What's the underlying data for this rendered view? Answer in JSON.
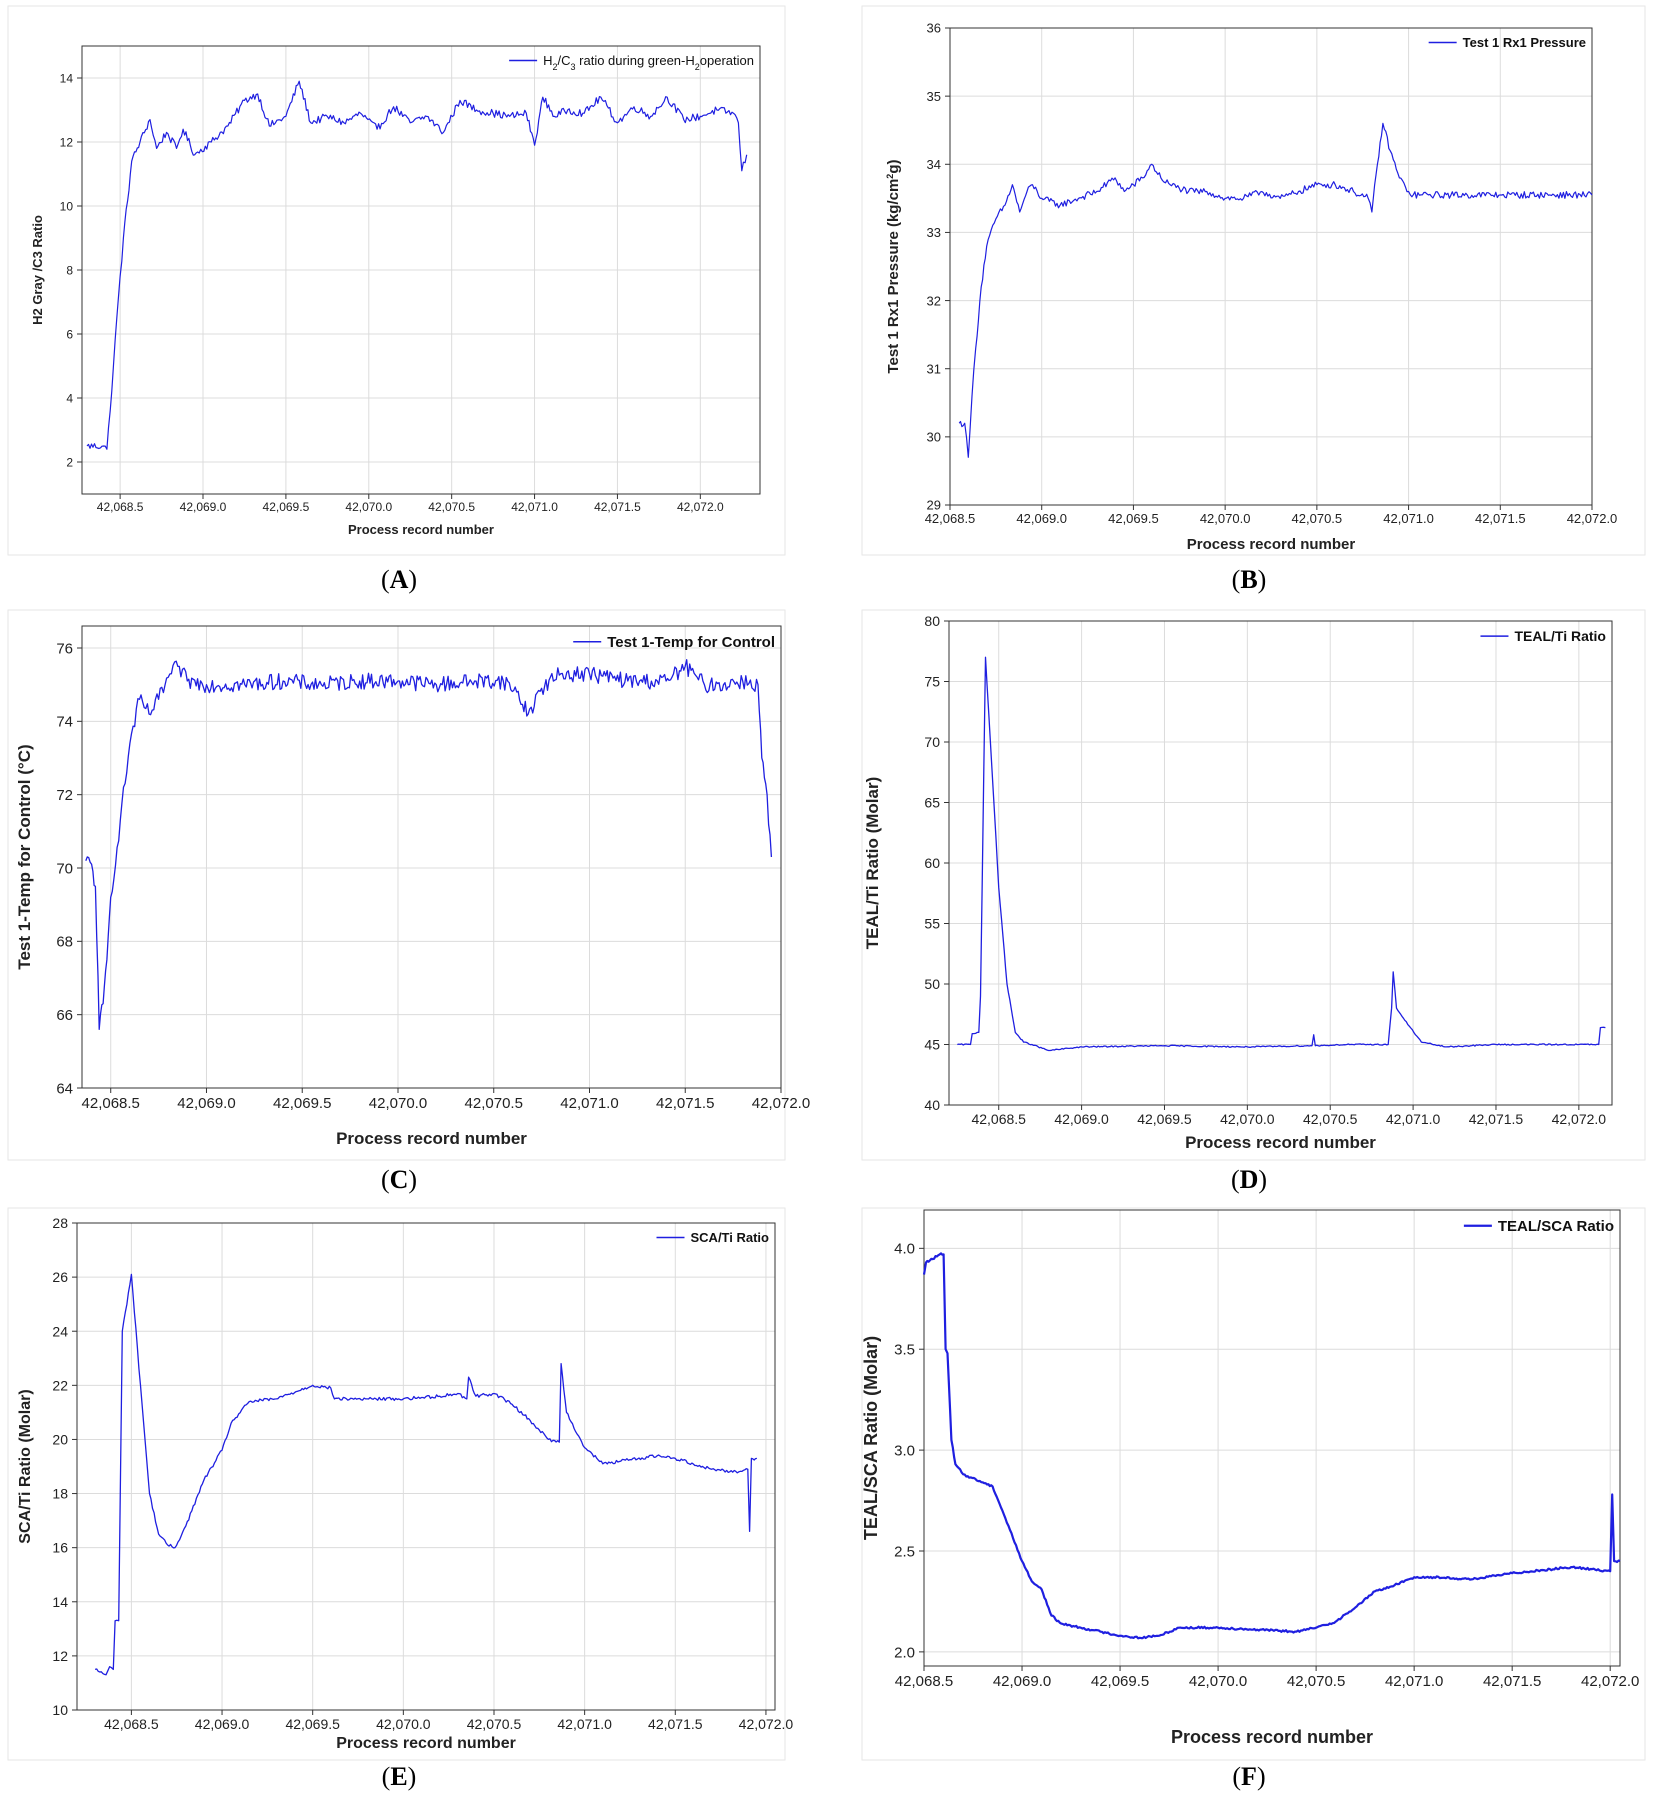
{
  "colors": {
    "line": "#1f1fe0",
    "grid": "#dcdcdc",
    "axis": "#333333",
    "frame": "#e6e6e6"
  },
  "panel_letters": [
    "A",
    "B",
    "C",
    "D",
    "E",
    "F"
  ],
  "chart_data": [
    {
      "panel": "A",
      "type": "line",
      "xlabel": "Process record number",
      "ylabel": "H2 Gray /C3 Ratio",
      "legend_html": "H<tspan baseline-shift=\"sub\" font-size=\"9\">2</tspan>/C<tspan baseline-shift=\"sub\" font-size=\"9\">3</tspan> ratio during green-H<tspan baseline-shift=\"sub\" font-size=\"9\">2</tspan>operation",
      "legend_text": "H2/C3 ratio during green-H2operation",
      "legend_position": "top-right",
      "grid": true,
      "xlim": [
        42068.27,
        42072.36
      ],
      "ylim": [
        1.0,
        15.0
      ],
      "xticks": [
        42068.5,
        42069.0,
        42069.5,
        42070.0,
        42070.5,
        42071.0,
        42071.5,
        42072.0
      ],
      "xtick_labels": [
        "42,068.5",
        "42,069.0",
        "42,069.5",
        "42,070.0",
        "42,070.5",
        "42,071.0",
        "42,071.5",
        "42,072.0"
      ],
      "yticks": [
        2,
        4,
        6,
        8,
        10,
        12,
        14
      ],
      "ytick_labels": [
        "2",
        "4",
        "6",
        "8",
        "10",
        "12",
        "14"
      ],
      "noise": 0.12,
      "series": [
        {
          "x": [
            42068.3,
            42068.4,
            42068.42,
            42068.44,
            42068.48,
            42068.52,
            42068.57,
            42068.62,
            42068.68,
            42068.72,
            42068.78,
            42068.84,
            42068.88,
            42068.95,
            42069.05,
            42069.15,
            42069.25,
            42069.33,
            42069.4,
            42069.5,
            42069.58,
            42069.65,
            42069.75,
            42069.85,
            42069.95,
            42070.05,
            42070.15,
            42070.25,
            42070.35,
            42070.45,
            42070.55,
            42070.65,
            42070.75,
            42070.85,
            42070.95,
            42071.0,
            42071.05,
            42071.12,
            42071.2,
            42071.3,
            42071.4,
            42071.5,
            42071.6,
            42071.7,
            42071.8,
            42071.9,
            42072.0,
            42072.1,
            42072.2,
            42072.23,
            42072.25,
            42072.28
          ],
          "y": [
            2.5,
            2.5,
            2.4,
            3.6,
            6.5,
            9.0,
            11.4,
            12.0,
            12.7,
            11.8,
            12.3,
            11.8,
            12.4,
            11.6,
            12.0,
            12.5,
            13.3,
            13.5,
            12.5,
            12.8,
            13.9,
            12.6,
            12.8,
            12.6,
            12.9,
            12.4,
            13.1,
            12.6,
            12.8,
            12.3,
            13.3,
            13.0,
            12.9,
            12.8,
            12.9,
            11.9,
            13.4,
            12.8,
            13.0,
            12.9,
            13.4,
            12.6,
            13.1,
            12.8,
            13.4,
            12.7,
            12.8,
            13.0,
            12.9,
            12.6,
            11.1,
            11.6
          ]
        }
      ]
    },
    {
      "panel": "B",
      "type": "line",
      "xlabel": "Process record number",
      "ylabel_html": "Test 1 Rx1 Pressure (kg/cm<tspan baseline-shift=\"super\" font-size=\"9\">2</tspan>g)",
      "ylabel": "Test 1 Rx1 Pressure (kg/cm2g)",
      "legend_text": "Test 1 Rx1 Pressure",
      "legend_position": "top-right",
      "grid": true,
      "xlim": [
        42068.5,
        42072.0
      ],
      "ylim": [
        29,
        36
      ],
      "xticks": [
        42068.5,
        42069.0,
        42069.5,
        42070.0,
        42070.5,
        42071.0,
        42071.5,
        42072.0
      ],
      "xtick_labels": [
        "42,068.5",
        "42,069.0",
        "42,069.5",
        "42,070.0",
        "42,070.5",
        "42,071.0",
        "42,071.5",
        "42,072.0"
      ],
      "yticks": [
        29,
        30,
        31,
        32,
        33,
        34,
        35,
        36
      ],
      "ytick_labels": [
        "29",
        "30",
        "31",
        "32",
        "33",
        "34",
        "35",
        "36"
      ],
      "noise": 0.05,
      "series": [
        {
          "x": [
            42068.55,
            42068.58,
            42068.6,
            42068.62,
            42068.64,
            42068.67,
            42068.7,
            42068.75,
            42068.8,
            42068.84,
            42068.88,
            42068.92,
            42068.95,
            42069.0,
            42069.1,
            42069.2,
            42069.3,
            42069.4,
            42069.45,
            42069.5,
            42069.55,
            42069.6,
            42069.65,
            42069.7,
            42069.8,
            42069.9,
            42070.0,
            42070.1,
            42070.2,
            42070.3,
            42070.4,
            42070.5,
            42070.6,
            42070.7,
            42070.78,
            42070.8,
            42070.83,
            42070.86,
            42070.9,
            42070.95,
            42071.0,
            42071.01,
            42071.5,
            42072.0
          ],
          "y": [
            30.2,
            30.2,
            29.7,
            30.6,
            31.3,
            32.2,
            32.8,
            33.2,
            33.4,
            33.7,
            33.3,
            33.6,
            33.7,
            33.5,
            33.4,
            33.5,
            33.6,
            33.8,
            33.6,
            33.7,
            33.8,
            34.0,
            33.8,
            33.7,
            33.6,
            33.6,
            33.5,
            33.5,
            33.6,
            33.5,
            33.6,
            33.7,
            33.7,
            33.6,
            33.5,
            33.3,
            34.0,
            34.6,
            34.2,
            33.8,
            33.6,
            33.55,
            33.55,
            33.55
          ]
        }
      ]
    },
    {
      "panel": "C",
      "type": "line",
      "xlabel": "Process record number",
      "ylabel": "Test 1-Temp for Control (°C)",
      "legend_text": "Test 1-Temp for Control",
      "legend_position": "top-right",
      "grid": true,
      "xlim": [
        42068.35,
        42072.0
      ],
      "ylim": [
        64,
        76.6
      ],
      "xticks": [
        42068.5,
        42069.0,
        42069.5,
        42070.0,
        42070.5,
        42071.0,
        42071.5,
        42072.0
      ],
      "xtick_labels": [
        "42,068.5",
        "42,069.0",
        "42,069.5",
        "42,070.0",
        "42,070.5",
        "42,071.0",
        "42,071.5",
        "42,072.0"
      ],
      "yticks": [
        64,
        66,
        68,
        70,
        72,
        74,
        76
      ],
      "ytick_labels": [
        "64",
        "66",
        "68",
        "70",
        "72",
        "74",
        "76"
      ],
      "noise": 0.22,
      "series": [
        {
          "x": [
            42068.37,
            42068.4,
            42068.42,
            42068.44,
            42068.46,
            42068.48,
            42068.5,
            42068.55,
            42068.6,
            42068.65,
            42068.7,
            42068.75,
            42068.8,
            42068.85,
            42068.9,
            42069.0,
            42069.2,
            42069.4,
            42069.6,
            42069.8,
            42070.0,
            42070.2,
            42070.4,
            42070.55,
            42070.62,
            42070.68,
            42070.75,
            42070.85,
            42071.0,
            42071.2,
            42071.4,
            42071.5,
            42071.6,
            42071.7,
            42071.8,
            42071.88,
            42071.9,
            42071.92,
            42071.95
          ],
          "y": [
            70.2,
            70.1,
            69.5,
            65.6,
            66.3,
            67.5,
            69.2,
            71.3,
            73.4,
            74.6,
            74.2,
            74.6,
            75.2,
            75.5,
            75.1,
            75.0,
            75.0,
            75.1,
            75.0,
            75.1,
            75.1,
            75.0,
            75.1,
            75.1,
            74.8,
            74.2,
            74.9,
            75.3,
            75.3,
            75.1,
            75.1,
            75.5,
            75.0,
            75.0,
            75.1,
            75.0,
            73.0,
            72.3,
            70.3
          ]
        }
      ]
    },
    {
      "panel": "D",
      "type": "line",
      "xlabel": "Process record number",
      "ylabel": "TEAL/Ti Ratio (Molar)",
      "legend_text": "TEAL/Ti Ratio",
      "legend_position": "top-right",
      "grid": true,
      "xlim": [
        42068.2,
        42072.2
      ],
      "ylim": [
        40,
        80
      ],
      "xticks": [
        42068.5,
        42069.0,
        42069.5,
        42070.0,
        42070.5,
        42071.0,
        42071.5,
        42072.0
      ],
      "xtick_labels": [
        "42,068.5",
        "42,069.0",
        "42,069.5",
        "42,070.0",
        "42,070.5",
        "42,071.0",
        "42,071.5",
        "42,072.0"
      ],
      "yticks": [
        40,
        45,
        50,
        55,
        60,
        65,
        70,
        75,
        80
      ],
      "ytick_labels": [
        "40",
        "45",
        "50",
        "55",
        "60",
        "65",
        "70",
        "75",
        "80"
      ],
      "noise": 0.05,
      "series": [
        {
          "x": [
            42068.25,
            42068.33,
            42068.34,
            42068.38,
            42068.39,
            42068.42,
            42068.45,
            42068.5,
            42068.55,
            42068.6,
            42068.65,
            42068.7,
            42068.8,
            42069.0,
            42069.5,
            42070.0,
            42070.39,
            42070.4,
            42070.41,
            42070.6,
            42070.85,
            42070.87,
            42070.88,
            42070.9,
            42070.95,
            42071.05,
            42071.2,
            42071.5,
            42072.0,
            42072.12,
            42072.13,
            42072.16
          ],
          "y": [
            45,
            45,
            45.9,
            46,
            49,
            77,
            70,
            58,
            50,
            46,
            45.2,
            45,
            44.5,
            44.8,
            44.9,
            44.8,
            44.9,
            45.8,
            44.9,
            45,
            45,
            48,
            51,
            48,
            47,
            45.2,
            44.8,
            45,
            45,
            45,
            46.4,
            46.4
          ]
        }
      ]
    },
    {
      "panel": "E",
      "type": "line",
      "xlabel": "Process record number",
      "ylabel": "SCA/Ti Ratio (Molar)",
      "legend_text": "SCA/Ti Ratio",
      "legend_position": "top-right",
      "grid": true,
      "xlim": [
        42068.2,
        42072.05
      ],
      "ylim": [
        10,
        28
      ],
      "xticks": [
        42068.5,
        42069.0,
        42069.5,
        42070.0,
        42070.5,
        42071.0,
        42071.5,
        42072.0
      ],
      "xtick_labels": [
        "42,068.5",
        "42,069.0",
        "42,069.5",
        "42,070.0",
        "42,070.5",
        "42,071.0",
        "42,071.5",
        "42,072.0"
      ],
      "yticks": [
        10,
        12,
        14,
        16,
        18,
        20,
        22,
        24,
        26,
        28
      ],
      "ytick_labels": [
        "10",
        "12",
        "14",
        "16",
        "18",
        "20",
        "22",
        "24",
        "26",
        "28"
      ],
      "noise": 0.06,
      "series": [
        {
          "x": [
            42068.3,
            42068.36,
            42068.38,
            42068.4,
            42068.41,
            42068.43,
            42068.45,
            42068.5,
            42068.55,
            42068.6,
            42068.65,
            42068.7,
            42068.74,
            42068.8,
            42068.9,
            42069.0,
            42069.05,
            42069.15,
            42069.3,
            42069.5,
            42069.6,
            42069.62,
            42069.8,
            42070.0,
            42070.2,
            42070.3,
            42070.35,
            42070.36,
            42070.4,
            42070.5,
            42070.6,
            42070.7,
            42070.8,
            42070.86,
            42070.87,
            42070.9,
            42071.0,
            42071.1,
            42071.2,
            42071.4,
            42071.5,
            42071.7,
            42071.85,
            42071.9,
            42071.91,
            42071.92,
            42071.95
          ],
          "y": [
            11.5,
            11.3,
            11.6,
            11.5,
            13.3,
            13.3,
            24.0,
            26.1,
            22.0,
            18.0,
            16.5,
            16.1,
            16.0,
            16.8,
            18.5,
            19.6,
            20.6,
            21.4,
            21.5,
            22.0,
            21.9,
            21.5,
            21.5,
            21.5,
            21.6,
            21.7,
            21.5,
            22.3,
            21.6,
            21.7,
            21.3,
            20.7,
            20.0,
            19.9,
            22.8,
            21.0,
            19.7,
            19.1,
            19.2,
            19.4,
            19.3,
            18.9,
            18.8,
            18.9,
            16.6,
            19.3,
            19.3
          ]
        }
      ]
    },
    {
      "panel": "F",
      "type": "line",
      "xlabel": "Process record number",
      "ylabel": "TEAL/SCA Ratio (Molar)",
      "legend_text": "TEAL/SCA Ratio",
      "legend_position": "top-right",
      "grid": true,
      "xlim": [
        42068.5,
        42072.05
      ],
      "ylim": [
        1.93,
        4.19
      ],
      "xticks": [
        42068.5,
        42069.0,
        42069.5,
        42070.0,
        42070.5,
        42071.0,
        42071.5,
        42072.0
      ],
      "xtick_labels": [
        "42,068.5",
        "42,069.0",
        "42,069.5",
        "42,070.0",
        "42,070.5",
        "42,071.0",
        "42,071.5",
        "42,072.0"
      ],
      "yticks": [
        2.0,
        2.5,
        3.0,
        3.5,
        4.0
      ],
      "ytick_labels": [
        "2.0",
        "2.5",
        "3.0",
        "3.5",
        "4.0"
      ],
      "noise": 0.005,
      "series": [
        {
          "x": [
            42068.5,
            42068.51,
            42068.53,
            42068.58,
            42068.6,
            42068.61,
            42068.62,
            42068.64,
            42068.66,
            42068.7,
            42068.8,
            42068.85,
            42068.9,
            42069.0,
            42069.05,
            42069.1,
            42069.15,
            42069.2,
            42069.3,
            42069.4,
            42069.5,
            42069.6,
            42069.7,
            42069.8,
            42070.0,
            42070.2,
            42070.4,
            42070.5,
            42070.6,
            42070.7,
            42070.8,
            42070.9,
            42071.0,
            42071.1,
            42071.3,
            42071.5,
            42071.8,
            42072.0,
            42072.01,
            42072.02,
            42072.05
          ],
          "y": [
            3.87,
            3.93,
            3.94,
            3.97,
            3.97,
            3.5,
            3.48,
            3.05,
            2.93,
            2.88,
            2.84,
            2.82,
            2.7,
            2.45,
            2.35,
            2.31,
            2.18,
            2.14,
            2.12,
            2.1,
            2.08,
            2.07,
            2.08,
            2.12,
            2.12,
            2.11,
            2.1,
            2.12,
            2.15,
            2.22,
            2.3,
            2.33,
            2.37,
            2.37,
            2.36,
            2.39,
            2.42,
            2.4,
            2.78,
            2.45,
            2.45
          ]
        }
      ]
    }
  ]
}
